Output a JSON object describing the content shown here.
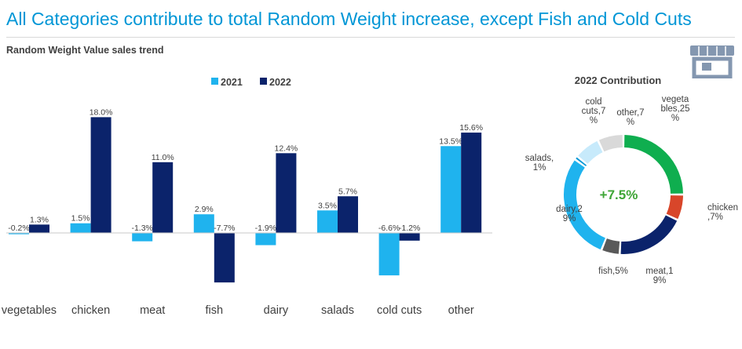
{
  "header": {
    "headline": "All Categories contribute to total Random Weight increase, except Fish and Cold Cuts",
    "subtitle": "Random Weight Value sales trend",
    "icon": "store-icon"
  },
  "colors": {
    "headline": "#0096D6",
    "series_2021": "#1FB3EE",
    "series_2022": "#0B236B",
    "total_text": "#3DA535"
  },
  "chart_data": [
    {
      "type": "bar",
      "title": "",
      "categories": [
        "vegetables",
        "chicken",
        "meat",
        "fish",
        "dairy",
        "salads",
        "cold cuts",
        "other"
      ],
      "series": [
        {
          "name": "2021",
          "values": [
            -0.2,
            1.5,
            -1.3,
            2.9,
            -1.9,
            3.5,
            -6.6,
            13.5
          ],
          "labels": [
            "-0.2%",
            "1.5%",
            "-1.3%",
            "2.9%",
            "-1.9%",
            "3.5%",
            "-6.6%",
            "13.5%"
          ]
        },
        {
          "name": "2022",
          "values": [
            1.3,
            18.0,
            11.0,
            -7.7,
            12.4,
            5.7,
            -1.2,
            15.6
          ],
          "labels": [
            "1.3%",
            "18.0%",
            "11.0%",
            "-7.7%",
            "12.4%",
            "5.7%",
            "-1.2%",
            "15.6%"
          ]
        }
      ],
      "legend_position": "top",
      "ylim": [
        -8,
        18
      ],
      "grid": false
    },
    {
      "type": "pie",
      "style": "donut",
      "title": "2022 Contribution",
      "center_label": "+7.5%",
      "slices": [
        {
          "name": "vegetables",
          "value": 25,
          "label": "vegeta\nbles,25\n%",
          "color": "#0FAE4F"
        },
        {
          "name": "chicken",
          "value": 7,
          "label": "chicken\n,7%",
          "color": "#D8462A"
        },
        {
          "name": "meat",
          "value": 19,
          "label": "meat,1\n9%",
          "color": "#0B236B"
        },
        {
          "name": "fish",
          "value": 5,
          "label": "fish,5%",
          "color": "#595959"
        },
        {
          "name": "dairy",
          "value": 29,
          "label": "dairy,2\n9%",
          "color": "#1FB3EE"
        },
        {
          "name": "salads",
          "value": 1,
          "label": "salads,\n1%",
          "color": "#0096D6"
        },
        {
          "name": "cold cuts",
          "value": 7,
          "label": "cold\ncuts,7\n%",
          "color": "#C7EAFB"
        },
        {
          "name": "other",
          "value": 7,
          "label": "other,7\n%",
          "color": "#D9D9D9"
        }
      ]
    }
  ]
}
